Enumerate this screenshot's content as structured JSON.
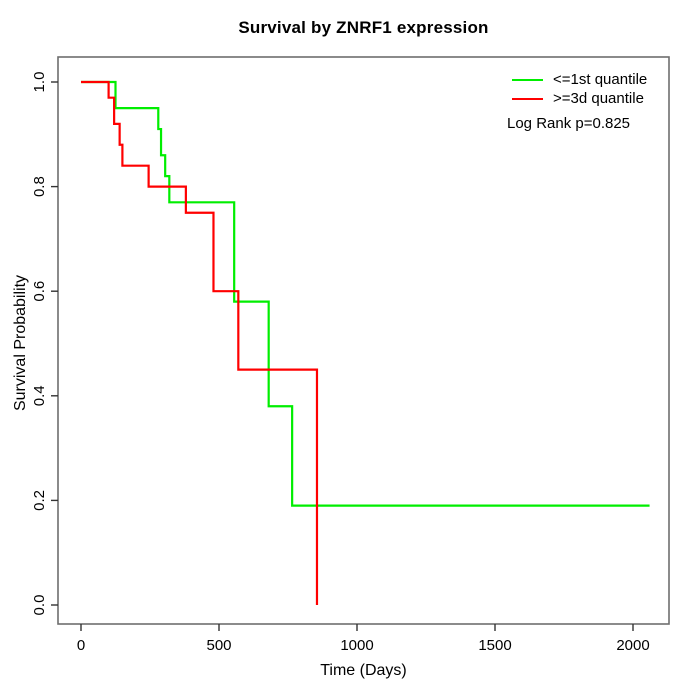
{
  "title": "Survival by ZNRF1 expression",
  "chart_data": {
    "type": "line",
    "subtype": "kaplan-meier-step-curves",
    "title": "Survival by ZNRF1 expression",
    "xlabel": "Time (Days)",
    "ylabel": "Survival Probability",
    "x_ticks": [
      0,
      500,
      1000,
      1500,
      2000
    ],
    "y_ticks": [
      "0.0",
      "0.2",
      "0.4",
      "0.6",
      "0.8",
      "1.0"
    ],
    "xlim": [
      -83,
      2130
    ],
    "ylim": [
      -0.036,
      1.048
    ],
    "grid": false,
    "legend_position": "top-right",
    "annotation": "Log Rank p=0.825",
    "series": [
      {
        "name": "<=1st quantile",
        "color": "#00ee00",
        "start": {
          "t": 0,
          "s": 1.0
        },
        "drops": [
          [
            125,
            0.95
          ],
          [
            280,
            0.91
          ],
          [
            290,
            0.86
          ],
          [
            305,
            0.82
          ],
          [
            320,
            0.77
          ],
          [
            555,
            0.58
          ],
          [
            680,
            0.38
          ],
          [
            765,
            0.19
          ]
        ],
        "end_t": 2060
      },
      {
        "name": ">=3d quantile",
        "color": "#ff0000",
        "start": {
          "t": 0,
          "s": 1.0
        },
        "drops": [
          [
            100,
            0.97
          ],
          [
            120,
            0.92
          ],
          [
            140,
            0.88
          ],
          [
            150,
            0.84
          ],
          [
            245,
            0.8
          ],
          [
            380,
            0.75
          ],
          [
            480,
            0.6
          ],
          [
            570,
            0.45
          ],
          [
            855,
            0.0
          ]
        ],
        "end_t": 855
      }
    ]
  },
  "legend": {
    "entries": [
      {
        "label": "<=1st quantile",
        "color": "#00ee00"
      },
      {
        "label": ">=3d quantile",
        "color": "#ff0000"
      }
    ],
    "note": "Log Rank p=0.825"
  },
  "colors": {
    "green_curve": "#00ee00",
    "red_curve": "#ff0000",
    "box": "#6e6e6e",
    "tick": "#333333",
    "text": "#000000",
    "background": "#ffffff"
  }
}
